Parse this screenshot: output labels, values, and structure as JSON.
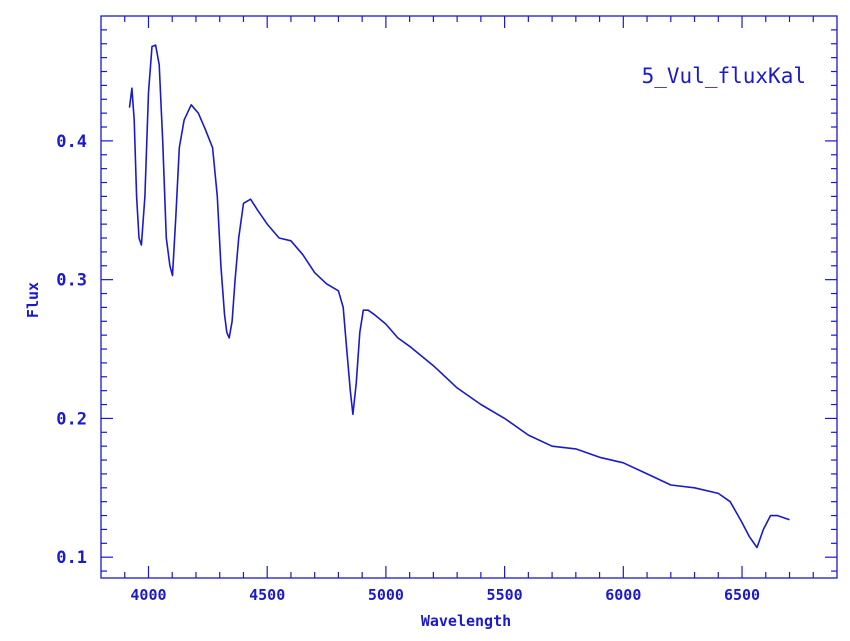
{
  "chart_data": {
    "type": "line",
    "title": "5_Vul_fluxKal",
    "xlabel": "Wavelength",
    "ylabel": "Flux",
    "xlim": [
      3800,
      6900
    ],
    "ylim": [
      0.085,
      0.49
    ],
    "xticks": [
      4000,
      4500,
      5000,
      5500,
      6000,
      6500
    ],
    "xtick_labels": [
      "4000",
      "4500",
      "5000",
      "5500",
      "6000",
      "6500"
    ],
    "yticks": [
      0.1,
      0.2,
      0.3,
      0.4
    ],
    "ytick_labels": [
      "0.1",
      "0.2",
      "0.3",
      "0.4"
    ],
    "color": "#1a1acc",
    "series": [
      {
        "x": [
          3920,
          3930,
          3940,
          3950,
          3960,
          3970,
          3985,
          4000,
          4015,
          4030,
          4045,
          4060,
          4075,
          4090,
          4101,
          4115,
          4130,
          4150,
          4180,
          4210,
          4240,
          4270,
          4290,
          4305,
          4320,
          4330,
          4340,
          4352,
          4365,
          4380,
          4400,
          4430,
          4460,
          4500,
          4550,
          4600,
          4650,
          4700,
          4750,
          4800,
          4820,
          4835,
          4850,
          4861,
          4875,
          4890,
          4905,
          4925,
          4950,
          5000,
          5050,
          5100,
          5200,
          5300,
          5400,
          5500,
          5600,
          5700,
          5800,
          5900,
          6000,
          6100,
          6200,
          6300,
          6400,
          6450,
          6500,
          6530,
          6563,
          6590,
          6620,
          6650,
          6700
        ],
        "y": [
          0.424,
          0.438,
          0.415,
          0.36,
          0.33,
          0.325,
          0.36,
          0.435,
          0.468,
          0.469,
          0.455,
          0.4,
          0.33,
          0.31,
          0.303,
          0.345,
          0.395,
          0.415,
          0.426,
          0.42,
          0.408,
          0.395,
          0.36,
          0.31,
          0.275,
          0.262,
          0.258,
          0.27,
          0.3,
          0.33,
          0.355,
          0.358,
          0.35,
          0.34,
          0.33,
          0.328,
          0.318,
          0.305,
          0.297,
          0.292,
          0.28,
          0.25,
          0.22,
          0.203,
          0.225,
          0.262,
          0.278,
          0.278,
          0.275,
          0.268,
          0.258,
          0.252,
          0.238,
          0.222,
          0.21,
          0.2,
          0.188,
          0.18,
          0.178,
          0.172,
          0.168,
          0.16,
          0.152,
          0.15,
          0.146,
          0.14,
          0.125,
          0.115,
          0.107,
          0.12,
          0.13,
          0.13,
          0.127
        ]
      }
    ]
  }
}
